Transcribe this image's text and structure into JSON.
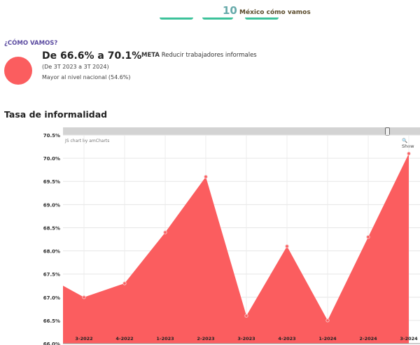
{
  "header": {
    "logo_text": "México cómo vamos",
    "logo_number": "10"
  },
  "summary": {
    "section_label": "¿CÓMO VAMOS?",
    "headline": "De 66.6% a 70.1%",
    "period": "(De 3T 2023 a 3T 2024)",
    "comparison": "Mayor al nivel nacional (54.6%)",
    "meta_label": "META",
    "meta_text": "Reducir trabajadores informales",
    "status_color": "#fb5d5f"
  },
  "chart_ui": {
    "credit": "JS chart by amCharts",
    "show_button": "Show",
    "zoom_icon": "magnifier-icon"
  },
  "chart_data": {
    "type": "area",
    "title": "Tasa de informalidad",
    "categories": [
      "3-2022",
      "4-2022",
      "1-2023",
      "2-2023",
      "3-2023",
      "4-2023",
      "1-2024",
      "2-2024",
      "3-2024"
    ],
    "values": [
      67.0,
      67.3,
      68.4,
      69.6,
      66.6,
      68.1,
      66.5,
      68.3,
      70.1
    ],
    "yticks": [
      "66.0%",
      "66.5%",
      "67.0%",
      "67.5%",
      "68.0%",
      "68.5%",
      "69.0%",
      "69.5%",
      "70.0%",
      "70.5%"
    ],
    "ylim": [
      66.0,
      70.5
    ],
    "unit": "%",
    "grid": true,
    "color": "#fb5d5f"
  }
}
